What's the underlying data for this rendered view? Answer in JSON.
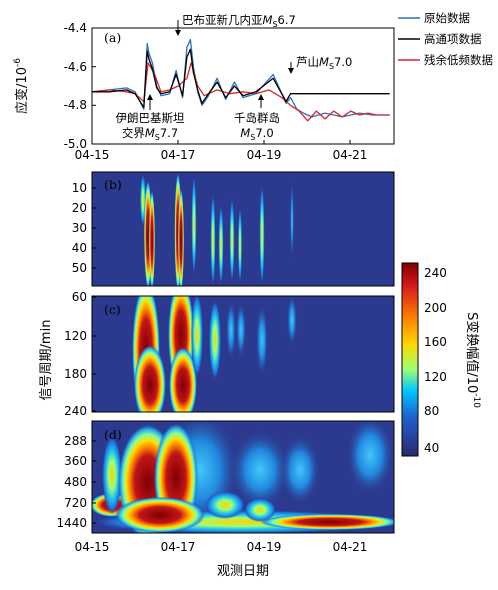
{
  "chart_data": [
    {
      "type": "line",
      "panel_label": "(a)",
      "ylabel": "应变/10",
      "ylabel_sup": "-6",
      "ylim": [
        -5.0,
        -4.4
      ],
      "yticks": [
        "-4.4",
        "-4.6",
        "-4.8",
        "-5.0"
      ],
      "xticks": [
        "04-15",
        "04-17",
        "04-19",
        "04-21"
      ],
      "legend": [
        "原始数据",
        "高通项数据",
        "残余低频数据"
      ],
      "legend_colors": [
        "#2b6fc4",
        "#000000",
        "#d62728"
      ],
      "series": [
        {
          "name": "原始数据",
          "x": [
            0,
            0.4,
            0.8,
            1.0,
            1.2,
            1.28,
            1.32,
            1.4,
            1.5,
            1.6,
            1.8,
            1.95,
            2.1,
            2.2,
            2.28,
            2.35,
            2.45,
            2.55,
            2.7,
            2.9,
            3.1,
            3.3,
            3.5,
            3.8,
            4.2,
            4.5,
            4.6,
            4.75,
            4.9,
            5.1,
            5.4,
            5.8,
            6.2,
            6.5,
            6.9
          ],
          "y": [
            -4.73,
            -4.72,
            -4.71,
            -4.73,
            -4.82,
            -4.48,
            -4.53,
            -4.58,
            -4.7,
            -4.75,
            -4.74,
            -4.62,
            -4.76,
            -4.5,
            -4.46,
            -4.6,
            -4.73,
            -4.8,
            -4.75,
            -4.66,
            -4.77,
            -4.68,
            -4.76,
            -4.74,
            -4.64,
            -4.79,
            -4.76,
            -4.82,
            -4.84,
            -4.86,
            -4.84,
            -4.86,
            -4.84,
            -4.85,
            -4.85
          ]
        },
        {
          "name": "高通项数据",
          "x": [
            0,
            0.4,
            0.8,
            1.0,
            1.2,
            1.28,
            1.32,
            1.4,
            1.5,
            1.6,
            1.8,
            1.95,
            2.1,
            2.2,
            2.28,
            2.35,
            2.45,
            2.55,
            2.7,
            2.9,
            3.1,
            3.3,
            3.5,
            3.8,
            4.2,
            4.5,
            4.6,
            4.75,
            4.9,
            5.1,
            5.4,
            5.8,
            6.2,
            6.5,
            6.9
          ],
          "y": [
            -4.73,
            -4.73,
            -4.72,
            -4.74,
            -4.81,
            -4.52,
            -4.56,
            -4.61,
            -4.71,
            -4.74,
            -4.73,
            -4.64,
            -4.75,
            -4.55,
            -4.51,
            -4.63,
            -4.72,
            -4.79,
            -4.74,
            -4.68,
            -4.76,
            -4.7,
            -4.75,
            -4.73,
            -4.66,
            -4.78,
            -4.74,
            -4.74,
            -4.74,
            -4.74,
            -4.74,
            -4.74,
            -4.74,
            -4.74,
            -4.74
          ]
        },
        {
          "name": "残余低频数据",
          "x": [
            0,
            0.4,
            0.8,
            1.0,
            1.2,
            1.3,
            1.45,
            1.6,
            1.8,
            2.0,
            2.2,
            2.3,
            2.45,
            2.6,
            2.9,
            3.2,
            3.5,
            3.8,
            4.1,
            4.4,
            4.6,
            4.8,
            5.0,
            5.2,
            5.4,
            5.6,
            5.8,
            6.0,
            6.2,
            6.4,
            6.6,
            6.9
          ],
          "y": [
            -4.73,
            -4.72,
            -4.73,
            -4.74,
            -4.78,
            -4.58,
            -4.64,
            -4.73,
            -4.72,
            -4.7,
            -4.66,
            -4.58,
            -4.7,
            -4.75,
            -4.72,
            -4.74,
            -4.73,
            -4.74,
            -4.72,
            -4.76,
            -4.8,
            -4.83,
            -4.88,
            -4.83,
            -4.87,
            -4.83,
            -4.86,
            -4.83,
            -4.85,
            -4.84,
            -4.85,
            -4.85
          ]
        }
      ],
      "annotations": [
        {
          "text": "巴布亚新几内亚",
          "mag": "6.7",
          "x": 2.25
        },
        {
          "text": "伊朗巴基斯坦",
          "line2": "交界",
          "mag": "7.7",
          "x": 1.45
        },
        {
          "text": "千岛群岛",
          "mag": "7.0",
          "x": 4.4
        },
        {
          "text": "芦山",
          "mag": "7.0",
          "x": 5.05
        }
      ]
    },
    {
      "type": "heatmap",
      "panel_label": "(b)",
      "yticks": [
        "10",
        "20",
        "30",
        "40",
        "50"
      ]
    },
    {
      "type": "heatmap",
      "panel_label": "(c)",
      "yticks": [
        "60",
        "120",
        "180",
        "240"
      ]
    },
    {
      "type": "heatmap",
      "panel_label": "(d)",
      "yticks": [
        "288",
        "360",
        "480",
        "720",
        "1440"
      ]
    }
  ],
  "shared": {
    "xticks": [
      "04-15",
      "04-17",
      "04-19",
      "04-21"
    ],
    "xlabel": "观测日期",
    "ylabel_lower": "信号周期/min",
    "colorbar": {
      "ticks": [
        "240",
        "200",
        "160",
        "120",
        "80",
        "40"
      ],
      "label": "S变换幅值/10",
      "label_sup": "-10",
      "colors": [
        "#7f0000",
        "#e31a1c",
        "#ff7f00",
        "#ffd700",
        "#7fff7f",
        "#00c8ff",
        "#1f78d4",
        "#2b3a8f",
        "#2a2a6e"
      ]
    },
    "mag_prefix": "M",
    "mag_sub": "S"
  }
}
